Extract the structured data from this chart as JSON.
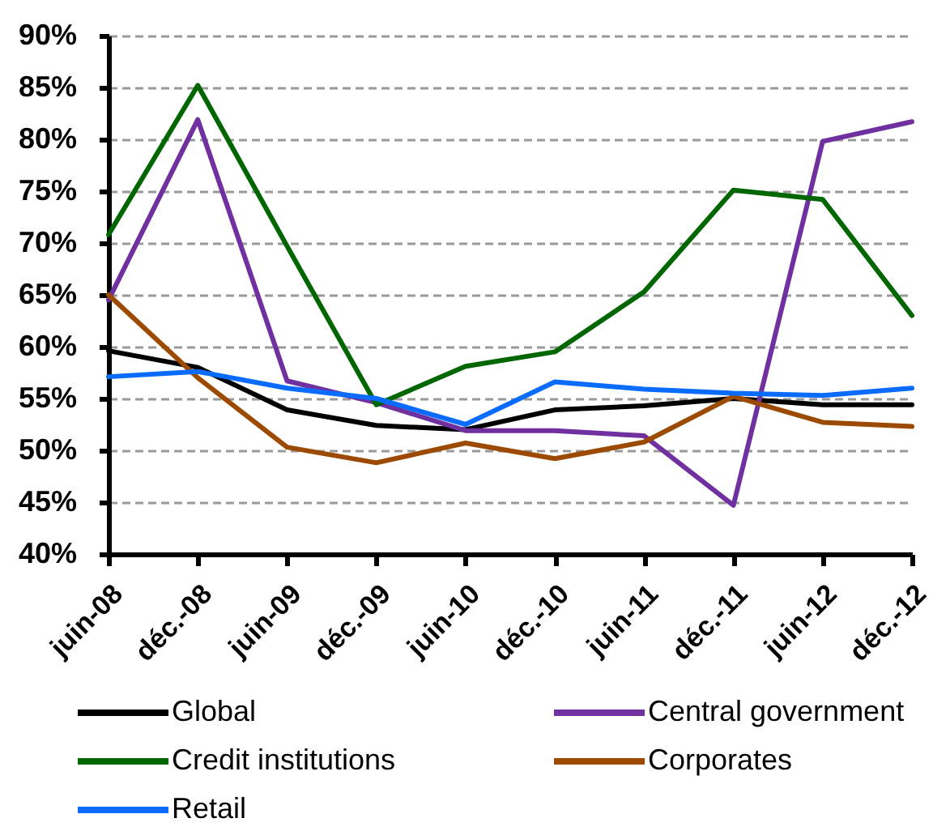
{
  "chart_data": {
    "type": "line",
    "categories": [
      "juin-08",
      "déc.-08",
      "juin-09",
      "déc.-09",
      "juin-10",
      "déc.-10",
      "juin-11",
      "déc.-11",
      "juin-12",
      "déc.-12"
    ],
    "series": [
      {
        "name": "Global",
        "color": "#000000",
        "values": [
          59.6,
          58.0,
          53.9,
          52.4,
          52.0,
          53.9,
          54.3,
          55.0,
          54.4,
          54.4
        ]
      },
      {
        "name": "Central government",
        "color": "#7030a0",
        "values": [
          64.5,
          81.9,
          56.7,
          54.6,
          51.9,
          51.9,
          51.4,
          44.7,
          79.8,
          81.7
        ]
      },
      {
        "name": "Credit institutions",
        "color": "#006600",
        "values": [
          70.8,
          85.2,
          69.7,
          54.4,
          58.1,
          59.5,
          65.3,
          75.1,
          74.2,
          63.0
        ]
      },
      {
        "name": "Corporates",
        "color": "#9c4a00",
        "values": [
          65.0,
          57.0,
          50.3,
          48.8,
          50.7,
          49.2,
          50.8,
          55.2,
          52.7,
          52.3
        ]
      },
      {
        "name": "Retail",
        "color": "#0a6cff",
        "values": [
          57.1,
          57.6,
          56.0,
          55.0,
          52.5,
          56.6,
          55.9,
          55.5,
          55.3,
          56.0
        ]
      }
    ],
    "ylim": [
      40,
      90
    ],
    "yticks": [
      {
        "value": 40,
        "label": "40%"
      },
      {
        "value": 45,
        "label": "45%"
      },
      {
        "value": 50,
        "label": "50%"
      },
      {
        "value": 55,
        "label": "55%"
      },
      {
        "value": 60,
        "label": "60%"
      },
      {
        "value": 65,
        "label": "65%"
      },
      {
        "value": 70,
        "label": "70%"
      },
      {
        "value": 75,
        "label": "75%"
      },
      {
        "value": 80,
        "label": "80%"
      },
      {
        "value": 85,
        "label": "85%"
      },
      {
        "value": 90,
        "label": "90%"
      }
    ],
    "grid": "y",
    "legend": "bottom"
  }
}
